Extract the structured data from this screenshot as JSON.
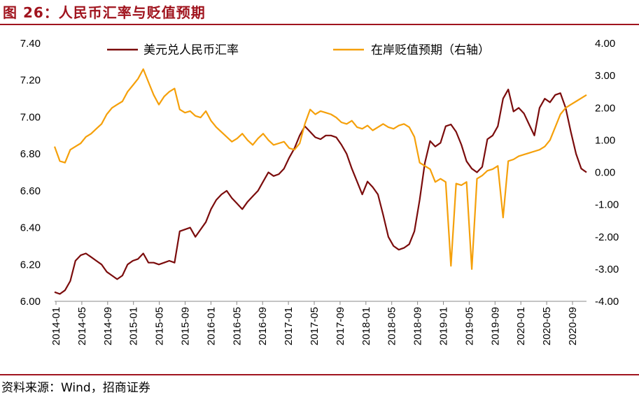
{
  "header": {
    "title": "图 26：人民币汇率与贬值预期"
  },
  "footer": {
    "source": "资料来源：Wind，招商证券"
  },
  "chart_data": {
    "type": "line",
    "title": "图 26：人民币汇率与贬值预期",
    "x_tick_labels": [
      "2014-01",
      "2014-05",
      "2014-09",
      "2015-01",
      "2015-05",
      "2015-09",
      "2016-01",
      "2016-05",
      "2016-09",
      "2017-01",
      "2017-05",
      "2017-09",
      "2018-01",
      "2018-05",
      "2018-09",
      "2019-01",
      "2019-05",
      "2019-09",
      "2020-01",
      "2020-05",
      "2020-09"
    ],
    "y_left": {
      "ticks": [
        "6.00",
        "6.20",
        "6.40",
        "6.60",
        "6.80",
        "7.00",
        "7.20",
        "7.40"
      ],
      "lim": [
        6.0,
        7.4
      ]
    },
    "y_right": {
      "ticks": [
        "-4.00",
        "-3.00",
        "-2.00",
        "-1.00",
        "0.00",
        "1.00",
        "2.00",
        "3.00",
        "4.00"
      ],
      "lim": [
        -4,
        4
      ]
    },
    "series": [
      {
        "name": "美元兑人民币汇率",
        "axis": "left",
        "color": "#7b0c0c",
        "points": [
          [
            0,
            6.05
          ],
          [
            1,
            6.04
          ],
          [
            2,
            6.06
          ],
          [
            3,
            6.11
          ],
          [
            4,
            6.22
          ],
          [
            5,
            6.25
          ],
          [
            6,
            6.26
          ],
          [
            7,
            6.24
          ],
          [
            8,
            6.22
          ],
          [
            9,
            6.2
          ],
          [
            10,
            6.16
          ],
          [
            11,
            6.14
          ],
          [
            12,
            6.12
          ],
          [
            13,
            6.14
          ],
          [
            14,
            6.2
          ],
          [
            15,
            6.22
          ],
          [
            16,
            6.23
          ],
          [
            17,
            6.26
          ],
          [
            18,
            6.21
          ],
          [
            19,
            6.21
          ],
          [
            20,
            6.2
          ],
          [
            21,
            6.21
          ],
          [
            22,
            6.22
          ],
          [
            23,
            6.21
          ],
          [
            24,
            6.38
          ],
          [
            25,
            6.39
          ],
          [
            26,
            6.4
          ],
          [
            27,
            6.35
          ],
          [
            28,
            6.39
          ],
          [
            29,
            6.43
          ],
          [
            30,
            6.5
          ],
          [
            31,
            6.55
          ],
          [
            32,
            6.58
          ],
          [
            33,
            6.6
          ],
          [
            34,
            6.56
          ],
          [
            35,
            6.53
          ],
          [
            36,
            6.5
          ],
          [
            37,
            6.54
          ],
          [
            38,
            6.57
          ],
          [
            39,
            6.6
          ],
          [
            40,
            6.65
          ],
          [
            41,
            6.7
          ],
          [
            42,
            6.68
          ],
          [
            43,
            6.69
          ],
          [
            44,
            6.72
          ],
          [
            45,
            6.78
          ],
          [
            46,
            6.83
          ],
          [
            47,
            6.9
          ],
          [
            48,
            6.95
          ],
          [
            49,
            6.92
          ],
          [
            50,
            6.89
          ],
          [
            51,
            6.88
          ],
          [
            52,
            6.9
          ],
          [
            53,
            6.9
          ],
          [
            54,
            6.89
          ],
          [
            55,
            6.85
          ],
          [
            56,
            6.8
          ],
          [
            57,
            6.72
          ],
          [
            58,
            6.65
          ],
          [
            59,
            6.58
          ],
          [
            60,
            6.65
          ],
          [
            61,
            6.62
          ],
          [
            62,
            6.58
          ],
          [
            63,
            6.47
          ],
          [
            64,
            6.35
          ],
          [
            65,
            6.3
          ],
          [
            66,
            6.28
          ],
          [
            67,
            6.29
          ],
          [
            68,
            6.31
          ],
          [
            69,
            6.38
          ],
          [
            70,
            6.55
          ],
          [
            71,
            6.75
          ],
          [
            72,
            6.87
          ],
          [
            73,
            6.84
          ],
          [
            74,
            6.86
          ],
          [
            75,
            6.95
          ],
          [
            76,
            6.96
          ],
          [
            77,
            6.92
          ],
          [
            78,
            6.85
          ],
          [
            79,
            6.76
          ],
          [
            80,
            6.72
          ],
          [
            81,
            6.7
          ],
          [
            82,
            6.73
          ],
          [
            83,
            6.88
          ],
          [
            84,
            6.9
          ],
          [
            85,
            6.95
          ],
          [
            86,
            7.1
          ],
          [
            87,
            7.15
          ],
          [
            88,
            7.03
          ],
          [
            89,
            7.05
          ],
          [
            90,
            7.02
          ],
          [
            91,
            6.96
          ],
          [
            92,
            6.9
          ],
          [
            93,
            7.05
          ],
          [
            94,
            7.1
          ],
          [
            95,
            7.08
          ],
          [
            96,
            7.12
          ],
          [
            97,
            7.13
          ],
          [
            98,
            7.05
          ],
          [
            99,
            6.92
          ],
          [
            100,
            6.8
          ],
          [
            101,
            6.72
          ],
          [
            102,
            6.7
          ]
        ]
      },
      {
        "name": "在岸贬值预期（右轴）",
        "axis": "right",
        "color": "#f5a00a",
        "points": [
          [
            0,
            0.8
          ],
          [
            1,
            0.35
          ],
          [
            2,
            0.3
          ],
          [
            3,
            0.7
          ],
          [
            4,
            0.8
          ],
          [
            5,
            0.9
          ],
          [
            6,
            1.1
          ],
          [
            7,
            1.2
          ],
          [
            8,
            1.35
          ],
          [
            9,
            1.5
          ],
          [
            10,
            1.8
          ],
          [
            11,
            2.0
          ],
          [
            12,
            2.1
          ],
          [
            13,
            2.2
          ],
          [
            14,
            2.5
          ],
          [
            15,
            2.7
          ],
          [
            16,
            2.9
          ],
          [
            17,
            3.2
          ],
          [
            18,
            2.8
          ],
          [
            19,
            2.4
          ],
          [
            20,
            2.1
          ],
          [
            21,
            2.35
          ],
          [
            22,
            2.5
          ],
          [
            23,
            2.6
          ],
          [
            24,
            1.95
          ],
          [
            25,
            1.85
          ],
          [
            26,
            1.9
          ],
          [
            27,
            1.75
          ],
          [
            28,
            1.7
          ],
          [
            29,
            1.9
          ],
          [
            30,
            1.6
          ],
          [
            31,
            1.4
          ],
          [
            32,
            1.25
          ],
          [
            33,
            1.1
          ],
          [
            34,
            0.95
          ],
          [
            35,
            1.05
          ],
          [
            36,
            1.2
          ],
          [
            37,
            1.0
          ],
          [
            38,
            0.85
          ],
          [
            39,
            1.05
          ],
          [
            40,
            1.2
          ],
          [
            41,
            1.0
          ],
          [
            42,
            0.85
          ],
          [
            43,
            0.9
          ],
          [
            44,
            0.95
          ],
          [
            45,
            0.75
          ],
          [
            46,
            0.7
          ],
          [
            47,
            0.9
          ],
          [
            48,
            1.5
          ],
          [
            49,
            1.95
          ],
          [
            50,
            1.8
          ],
          [
            51,
            1.9
          ],
          [
            52,
            1.85
          ],
          [
            53,
            1.8
          ],
          [
            54,
            1.7
          ],
          [
            55,
            1.55
          ],
          [
            56,
            1.5
          ],
          [
            57,
            1.6
          ],
          [
            58,
            1.4
          ],
          [
            59,
            1.35
          ],
          [
            60,
            1.45
          ],
          [
            61,
            1.3
          ],
          [
            62,
            1.4
          ],
          [
            63,
            1.5
          ],
          [
            64,
            1.4
          ],
          [
            65,
            1.35
          ],
          [
            66,
            1.45
          ],
          [
            67,
            1.5
          ],
          [
            68,
            1.4
          ],
          [
            69,
            1.1
          ],
          [
            70,
            0.3
          ],
          [
            71,
            0.2
          ],
          [
            72,
            0.1
          ],
          [
            73,
            -0.3
          ],
          [
            74,
            -0.2
          ],
          [
            75,
            -0.3
          ],
          [
            76,
            -2.9
          ],
          [
            77,
            -0.35
          ],
          [
            78,
            -0.4
          ],
          [
            79,
            -0.3
          ],
          [
            80,
            -3.0
          ],
          [
            81,
            -0.2
          ],
          [
            82,
            -0.1
          ],
          [
            83,
            0.05
          ],
          [
            84,
            0.1
          ],
          [
            85,
            0.2
          ],
          [
            86,
            -1.4
          ],
          [
            87,
            0.35
          ],
          [
            88,
            0.4
          ],
          [
            89,
            0.5
          ],
          [
            90,
            0.55
          ],
          [
            91,
            0.6
          ],
          [
            92,
            0.65
          ],
          [
            93,
            0.7
          ],
          [
            94,
            0.8
          ],
          [
            95,
            1.0
          ],
          [
            96,
            1.4
          ],
          [
            97,
            1.8
          ],
          [
            98,
            2.0
          ],
          [
            99,
            2.1
          ],
          [
            100,
            2.2
          ],
          [
            101,
            2.3
          ],
          [
            102,
            2.4
          ]
        ]
      }
    ],
    "legend_position": "top"
  }
}
